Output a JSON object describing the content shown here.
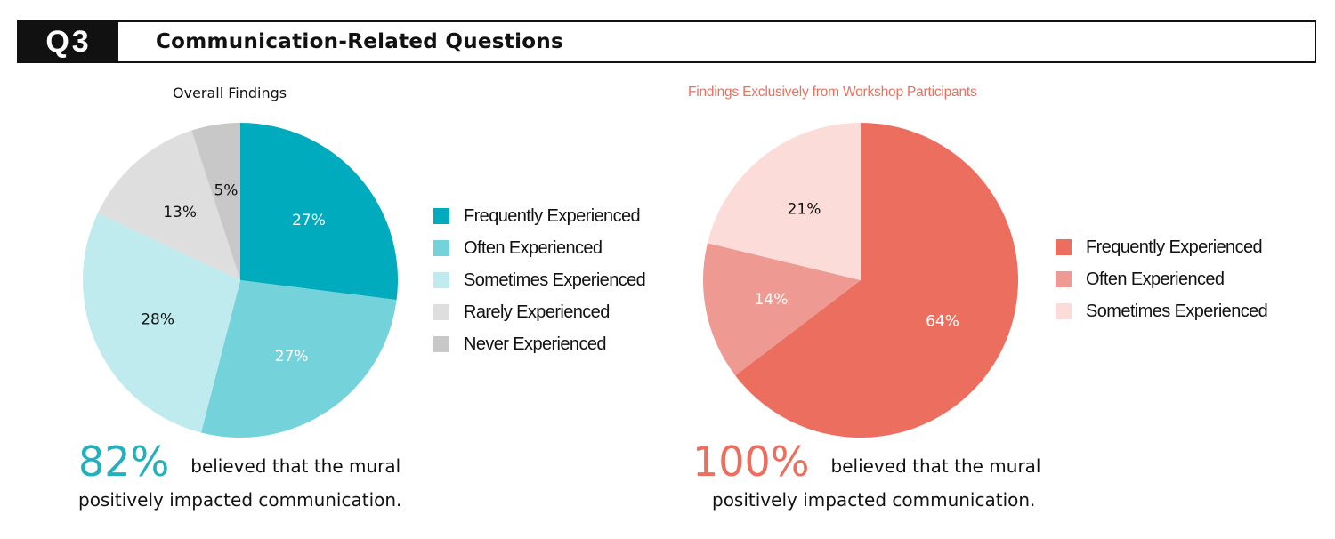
{
  "header": {
    "badge": "Q3",
    "title": "Communication-Related Questions"
  },
  "chart_data": [
    {
      "type": "pie",
      "title": "Overall Findings",
      "categories": [
        "Frequently Experienced",
        "Often Experienced",
        "Sometimes Experienced",
        "Rarely Experienced",
        "Never Experienced"
      ],
      "values": [
        27,
        27,
        28,
        13,
        5
      ],
      "labels": [
        "27%",
        "27%",
        "28%",
        "13%",
        "5%"
      ],
      "colors": [
        "#00abbd",
        "#74d3da",
        "#bfeaee",
        "#dedede",
        "#c8c8c8"
      ],
      "label_colors": [
        "#ffffff",
        "#ffffff",
        "#111111",
        "#111111",
        "#111111"
      ],
      "start_angle_deg": 0,
      "legend_position": "right"
    },
    {
      "type": "pie",
      "title": "Findings Exclusively from Workshop Participants",
      "categories": [
        "Frequently Experienced",
        "Often Experienced",
        "Sometimes Experienced"
      ],
      "values": [
        64,
        14,
        21
      ],
      "labels": [
        "64%",
        "14%",
        "21%"
      ],
      "colors": [
        "#ec6e5f",
        "#ee9a92",
        "#fbdcd8"
      ],
      "label_colors": [
        "#ffffff",
        "#ffffff",
        "#111111"
      ],
      "start_angle_deg": 0,
      "legend_position": "right"
    }
  ],
  "stats": [
    {
      "value": "82%",
      "color": "#22b0bd",
      "text1": "believed that the mural",
      "text2": "positively impacted communication."
    },
    {
      "value": "100%",
      "color": "#ec6e5f",
      "text1": "believed that the mural",
      "text2": "positively impacted communication."
    }
  ]
}
